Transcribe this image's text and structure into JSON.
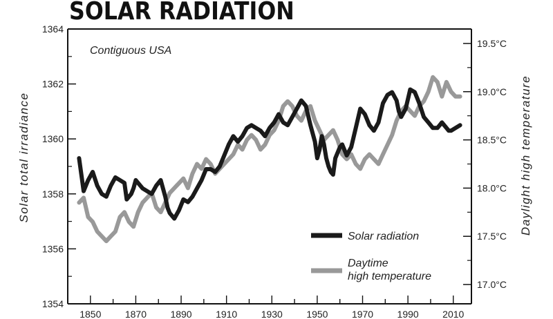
{
  "title": "SOLAR RADIATION",
  "chart_data": {
    "type": "line",
    "title": "SOLAR RADIATION",
    "annotation": "Contiguous USA",
    "ylabel": "Solar total irradiance",
    "y2label": "Daylight high temperature",
    "ylim": [
      1354,
      1364
    ],
    "y2lim": [
      16.8,
      19.65
    ],
    "y_ticks": [
      1354,
      1356,
      1358,
      1360,
      1362,
      1364
    ],
    "y_tick_labels": [
      "1354",
      "1356",
      "1358",
      "1360",
      "1362",
      "1364"
    ],
    "y2_ticks": [
      17.0,
      17.5,
      18.0,
      18.5,
      19.0,
      19.5
    ],
    "y2_tick_labels": [
      "17.0°C",
      "17.5°C",
      "18.0°C",
      "18.5°C",
      "19.0°C",
      "19.5°C"
    ],
    "xlim": [
      1840,
      2018
    ],
    "x_ticks": [
      1850,
      1870,
      1890,
      1910,
      1930,
      1950,
      1970,
      1990,
      2010
    ],
    "x_tick_labels": [
      "1850",
      "1870",
      "1890",
      "1910",
      "1930",
      "1950",
      "1970",
      "1990",
      "2010"
    ],
    "grid": false,
    "legend_position": "bottom-right",
    "series": [
      {
        "name": "Solar radiation",
        "axis": "left",
        "color": "#1a1a1a",
        "x": [
          1845,
          1847,
          1849,
          1851,
          1853,
          1855,
          1857,
          1859,
          1861,
          1863,
          1865,
          1866,
          1867,
          1868,
          1869,
          1870,
          1871,
          1873,
          1875,
          1877,
          1879,
          1881,
          1883,
          1884,
          1885,
          1887,
          1889,
          1891,
          1893,
          1895,
          1897,
          1899,
          1901,
          1903,
          1905,
          1907,
          1909,
          1911,
          1913,
          1915,
          1917,
          1919,
          1921,
          1923,
          1925,
          1927,
          1929,
          1931,
          1933,
          1935,
          1937,
          1939,
          1941,
          1943,
          1945,
          1947,
          1949,
          1950,
          1951,
          1952,
          1953,
          1954,
          1955,
          1956,
          1957,
          1958,
          1960,
          1961,
          1962,
          1963,
          1965,
          1967,
          1969,
          1971,
          1973,
          1975,
          1977,
          1979,
          1981,
          1983,
          1985,
          1986,
          1987,
          1989,
          1991,
          1993,
          1994,
          1995,
          1997,
          1999,
          2001,
          2003,
          2004,
          2005,
          2006,
          2007,
          2008,
          2009,
          2011,
          2013
        ],
        "y": [
          1359.3,
          1358.1,
          1358.5,
          1358.8,
          1358.3,
          1358.0,
          1357.9,
          1358.3,
          1358.6,
          1358.5,
          1358.4,
          1357.8,
          1357.9,
          1358.0,
          1358.2,
          1358.5,
          1358.4,
          1358.2,
          1358.1,
          1358.0,
          1358.3,
          1358.5,
          1357.9,
          1357.5,
          1357.3,
          1357.1,
          1357.4,
          1357.8,
          1357.7,
          1357.9,
          1358.2,
          1358.5,
          1358.9,
          1358.9,
          1358.8,
          1359.0,
          1359.4,
          1359.8,
          1360.1,
          1359.9,
          1360.1,
          1360.4,
          1360.5,
          1360.4,
          1360.3,
          1360.1,
          1360.4,
          1360.6,
          1360.9,
          1360.6,
          1360.5,
          1360.8,
          1361.1,
          1361.4,
          1361.2,
          1360.5,
          1359.9,
          1359.3,
          1359.6,
          1360.1,
          1359.8,
          1359.3,
          1359.0,
          1358.8,
          1358.7,
          1359.3,
          1359.7,
          1359.8,
          1359.6,
          1359.4,
          1359.7,
          1360.4,
          1361.1,
          1360.9,
          1360.5,
          1360.3,
          1360.6,
          1361.3,
          1361.6,
          1361.7,
          1361.4,
          1361.0,
          1360.8,
          1361.1,
          1361.8,
          1361.7,
          1361.5,
          1361.3,
          1360.8,
          1360.6,
          1360.4,
          1360.4,
          1360.5,
          1360.6,
          1360.5,
          1360.4,
          1360.3,
          1360.3,
          1360.4,
          1360.5
        ]
      },
      {
        "name": "Daytime high temperature",
        "axis": "right",
        "color": "#999999",
        "x": [
          1845,
          1847,
          1849,
          1851,
          1853,
          1855,
          1857,
          1859,
          1861,
          1863,
          1865,
          1867,
          1869,
          1871,
          1873,
          1875,
          1877,
          1879,
          1881,
          1883,
          1885,
          1887,
          1889,
          1891,
          1893,
          1895,
          1897,
          1899,
          1901,
          1903,
          1905,
          1907,
          1909,
          1911,
          1913,
          1915,
          1917,
          1919,
          1921,
          1923,
          1925,
          1927,
          1929,
          1931,
          1933,
          1935,
          1937,
          1939,
          1941,
          1943,
          1945,
          1947,
          1949,
          1951,
          1953,
          1955,
          1957,
          1959,
          1961,
          1963,
          1965,
          1967,
          1969,
          1971,
          1973,
          1975,
          1977,
          1979,
          1981,
          1983,
          1985,
          1987,
          1989,
          1991,
          1993,
          1995,
          1997,
          1999,
          2001,
          2003,
          2005,
          2007,
          2009,
          2011,
          2013
        ],
        "y": [
          17.85,
          17.9,
          17.7,
          17.65,
          17.55,
          17.5,
          17.45,
          17.5,
          17.55,
          17.7,
          17.75,
          17.65,
          17.6,
          17.75,
          17.85,
          17.9,
          17.95,
          17.8,
          17.75,
          17.85,
          17.95,
          18.0,
          18.05,
          18.1,
          18.0,
          18.15,
          18.25,
          18.2,
          18.3,
          18.25,
          18.15,
          18.2,
          18.25,
          18.3,
          18.35,
          18.45,
          18.4,
          18.5,
          18.55,
          18.5,
          18.4,
          18.45,
          18.55,
          18.6,
          18.7,
          18.85,
          18.9,
          18.85,
          18.75,
          18.7,
          18.8,
          18.85,
          18.7,
          18.6,
          18.5,
          18.55,
          18.6,
          18.5,
          18.35,
          18.3,
          18.35,
          18.25,
          18.2,
          18.3,
          18.35,
          18.3,
          18.25,
          18.35,
          18.45,
          18.55,
          18.7,
          18.8,
          18.85,
          18.8,
          18.75,
          18.85,
          18.9,
          19.0,
          19.15,
          19.1,
          18.95,
          19.1,
          19.0,
          18.95,
          18.95
        ]
      }
    ]
  }
}
